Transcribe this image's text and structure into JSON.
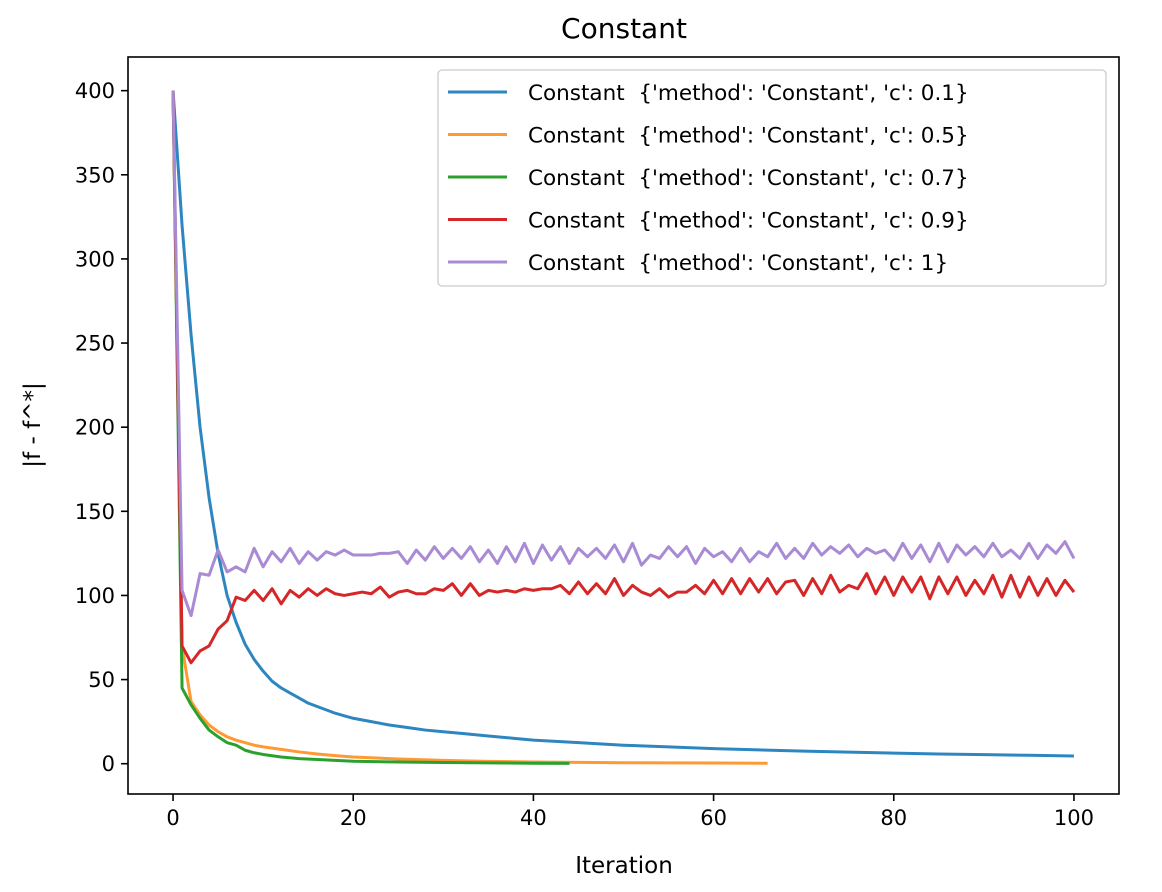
{
  "chart_data": {
    "type": "line",
    "title": "Constant",
    "xlabel": "Iteration",
    "ylabel": "|f - f^*|",
    "xlim": [
      -5,
      105
    ],
    "ylim": [
      -18,
      420
    ],
    "xticks": [
      0,
      20,
      40,
      60,
      80,
      100
    ],
    "yticks": [
      0,
      50,
      100,
      150,
      200,
      250,
      300,
      350,
      400
    ],
    "grid": false,
    "legend_position": "top-right",
    "series": [
      {
        "name": "Constant  {'method': 'Constant', 'c': 0.1}",
        "color": "#2e86c1",
        "x": [
          0,
          1,
          2,
          3,
          4,
          5,
          6,
          7,
          8,
          9,
          10,
          11,
          12,
          13,
          14,
          15,
          16,
          17,
          18,
          19,
          20,
          22,
          24,
          26,
          28,
          30,
          32,
          35,
          38,
          40,
          45,
          50,
          55,
          60,
          65,
          70,
          75,
          80,
          85,
          90,
          95,
          100
        ],
        "y": [
          400,
          320,
          255,
          200,
          158,
          125,
          100,
          84,
          71,
          62,
          55,
          49,
          45,
          42,
          39,
          36,
          34,
          32,
          30,
          28.5,
          27,
          25,
          23,
          21.5,
          20,
          19,
          18,
          16.5,
          15,
          14,
          12.5,
          11,
          10,
          9,
          8.2,
          7.5,
          6.9,
          6.3,
          5.8,
          5.4,
          5,
          4.6
        ]
      },
      {
        "name": "Constant  {'method': 'Constant', 'c': 0.5}",
        "color": "#ff9933",
        "x": [
          0,
          1,
          2,
          3,
          4,
          5,
          6,
          7,
          8,
          9,
          10,
          12,
          14,
          16,
          18,
          20,
          25,
          30,
          35,
          40,
          45,
          50,
          55,
          60,
          66
        ],
        "y": [
          400,
          70,
          37,
          29,
          23,
          19,
          16,
          14,
          12.5,
          11,
          10,
          8.5,
          7,
          5.8,
          4.8,
          4,
          2.8,
          2,
          1.4,
          1,
          0.8,
          0.6,
          0.5,
          0.4,
          0.3
        ]
      },
      {
        "name": "Constant  {'method': 'Constant', 'c': 0.7}",
        "color": "#2ca02c",
        "x": [
          0,
          1,
          2,
          3,
          4,
          5,
          6,
          7,
          8,
          9,
          10,
          12,
          14,
          16,
          18,
          20,
          25,
          30,
          35,
          40,
          44
        ],
        "y": [
          400,
          45,
          35,
          27,
          20,
          16,
          12.5,
          11,
          8,
          6.5,
          5.5,
          4,
          3,
          2.5,
          2,
          1.5,
          1,
          0.7,
          0.5,
          0.3,
          0.2
        ]
      },
      {
        "name": "Constant  {'method': 'Constant', 'c': 0.9}",
        "color": "#d62728",
        "x": [
          0,
          1,
          2,
          3,
          4,
          5,
          6,
          7,
          8,
          9,
          10,
          11,
          12,
          13,
          14,
          15,
          16,
          17,
          18,
          19,
          20,
          21,
          22,
          23,
          24,
          25,
          26,
          27,
          28,
          29,
          30,
          31,
          32,
          33,
          34,
          35,
          36,
          37,
          38,
          39,
          40,
          41,
          42,
          43,
          44,
          45,
          46,
          47,
          48,
          49,
          50,
          51,
          52,
          53,
          54,
          55,
          56,
          57,
          58,
          59,
          60,
          61,
          62,
          63,
          64,
          65,
          66,
          67,
          68,
          69,
          70,
          71,
          72,
          73,
          74,
          75,
          76,
          77,
          78,
          79,
          80,
          81,
          82,
          83,
          84,
          85,
          86,
          87,
          88,
          89,
          90,
          91,
          92,
          93,
          94,
          95,
          96,
          97,
          98,
          99,
          100
        ],
        "y": [
          400,
          70,
          60,
          67,
          70,
          80,
          85,
          99,
          97,
          103,
          97,
          104,
          95,
          103,
          99,
          104,
          100,
          104,
          101,
          100,
          101,
          102,
          101,
          105,
          99,
          102,
          103,
          101,
          101,
          104,
          103,
          107,
          100,
          107,
          100,
          103,
          102,
          103,
          102,
          104,
          103,
          104,
          104,
          106,
          101,
          108,
          101,
          107,
          101,
          110,
          100,
          106,
          102,
          100,
          104,
          99,
          102,
          102,
          106,
          101,
          109,
          101,
          110,
          101,
          110,
          102,
          110,
          101,
          108,
          109,
          100,
          110,
          101,
          112,
          102,
          106,
          104,
          113,
          101,
          111,
          100,
          111,
          102,
          111,
          98,
          111,
          101,
          111,
          100,
          109,
          101,
          112,
          99,
          112,
          99,
          111,
          100,
          110,
          100,
          109,
          102
        ]
      },
      {
        "name": "Constant  {'method': 'Constant', 'c': 1}",
        "color": "#a98bd4",
        "x": [
          0,
          1,
          2,
          3,
          4,
          5,
          6,
          7,
          8,
          9,
          10,
          11,
          12,
          13,
          14,
          15,
          16,
          17,
          18,
          19,
          20,
          21,
          22,
          23,
          24,
          25,
          26,
          27,
          28,
          29,
          30,
          31,
          32,
          33,
          34,
          35,
          36,
          37,
          38,
          39,
          40,
          41,
          42,
          43,
          44,
          45,
          46,
          47,
          48,
          49,
          50,
          51,
          52,
          53,
          54,
          55,
          56,
          57,
          58,
          59,
          60,
          61,
          62,
          63,
          64,
          65,
          66,
          67,
          68,
          69,
          70,
          71,
          72,
          73,
          74,
          75,
          76,
          77,
          78,
          79,
          80,
          81,
          82,
          83,
          84,
          85,
          86,
          87,
          88,
          89,
          90,
          91,
          92,
          93,
          94,
          95,
          96,
          97,
          98,
          99,
          100
        ],
        "y": [
          400,
          103,
          88,
          113,
          112,
          127,
          114,
          117,
          114,
          128,
          117,
          126,
          120,
          128,
          119,
          126,
          121,
          126,
          124,
          127,
          124,
          124,
          124,
          125,
          125,
          126,
          119,
          127,
          121,
          129,
          122,
          128,
          122,
          129,
          120,
          127,
          119,
          129,
          120,
          131,
          119,
          130,
          121,
          129,
          119,
          128,
          123,
          128,
          122,
          130,
          120,
          131,
          118,
          124,
          122,
          129,
          123,
          129,
          119,
          128,
          123,
          126,
          120,
          128,
          120,
          126,
          123,
          131,
          122,
          128,
          122,
          131,
          124,
          129,
          125,
          130,
          123,
          128,
          125,
          127,
          121,
          131,
          122,
          130,
          120,
          131,
          120,
          130,
          124,
          129,
          123,
          131,
          123,
          127,
          122,
          131,
          122,
          130,
          125,
          132,
          122
        ]
      }
    ]
  }
}
